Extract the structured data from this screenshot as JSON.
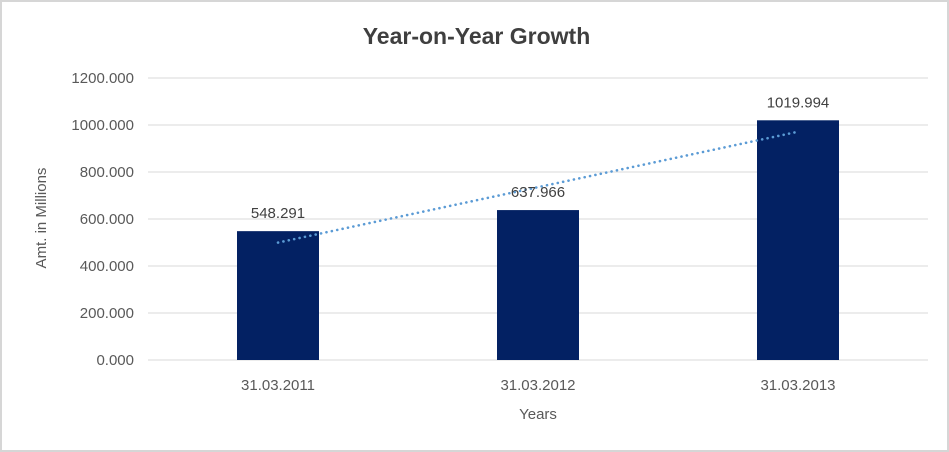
{
  "chart_data": {
    "type": "bar",
    "title": "Year-on-Year Growth",
    "xlabel": "Years",
    "ylabel": "Amt. in Millions",
    "categories": [
      "31.03.2011",
      "31.03.2012",
      "31.03.2013"
    ],
    "series": [
      {
        "name": "Amt. in Millions",
        "values": [
          548.291,
          637.966,
          1019.994
        ],
        "data_labels": [
          "548.291",
          "637.966",
          "1019.994"
        ],
        "color": "#032163"
      }
    ],
    "ylim": [
      0,
      1200
    ],
    "yticks": [
      {
        "value": 0,
        "label": "0.000"
      },
      {
        "value": 200,
        "label": "200.000"
      },
      {
        "value": 400,
        "label": "400.000"
      },
      {
        "value": 600,
        "label": "600.000"
      },
      {
        "value": 800,
        "label": "800.000"
      },
      {
        "value": 1000,
        "label": "1000.000"
      },
      {
        "value": 1200,
        "label": "1200.000"
      }
    ],
    "grid": true,
    "grid_color": "#d9d9d9",
    "legend_position": "none",
    "trendline": {
      "fit": "linear",
      "style": "dotted",
      "color": "#5b9bd5",
      "start_value": 499.6,
      "end_value": 971.3
    },
    "text_colors": {
      "title": "#3f3f3f",
      "axis": "#595959",
      "data_label": "#404040"
    }
  }
}
